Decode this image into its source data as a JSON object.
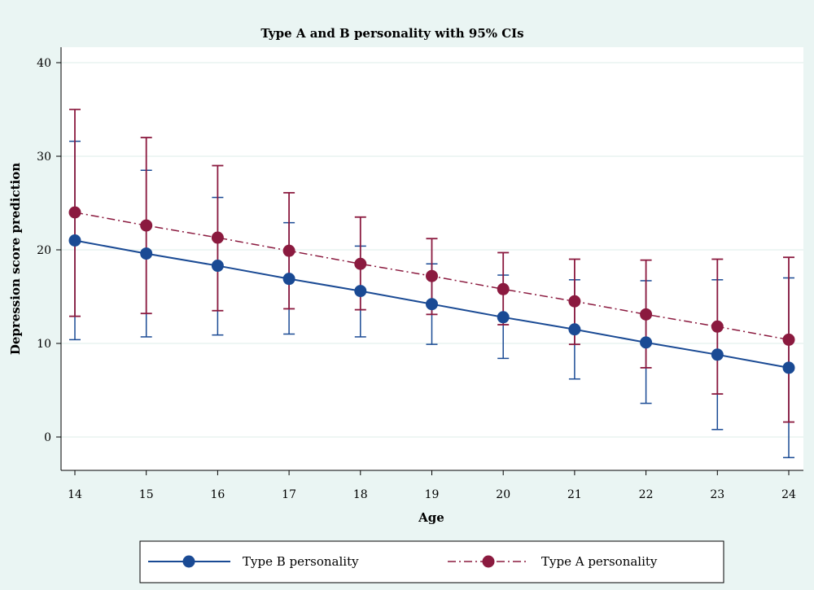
{
  "chart_data": {
    "type": "line",
    "title": "Type A and B personality with 95% CIs",
    "xlabel": "Age",
    "ylabel": "Depression score prediction",
    "x": [
      14,
      15,
      16,
      17,
      18,
      19,
      20,
      21,
      22,
      23,
      24
    ],
    "xlim": [
      14,
      24
    ],
    "ylim": [
      -3.5,
      40
    ],
    "yticks": [
      0,
      10,
      20,
      30,
      40
    ],
    "grid": true,
    "legend_position": "bottom",
    "series": [
      {
        "name": "Type B personality",
        "color": "#1a4a94",
        "line_style": "solid",
        "values": [
          21.0,
          19.6,
          18.3,
          16.9,
          15.6,
          14.2,
          12.8,
          11.5,
          10.1,
          8.8,
          7.4
        ],
        "ci_lower": [
          10.4,
          10.7,
          10.9,
          11.0,
          10.7,
          9.9,
          8.4,
          6.2,
          3.6,
          0.8,
          -2.2
        ],
        "ci_upper": [
          31.6,
          28.5,
          25.6,
          22.9,
          20.4,
          18.5,
          17.3,
          16.8,
          16.7,
          16.8,
          17.0
        ]
      },
      {
        "name": "Type A personality",
        "color": "#8b1a3f",
        "line_style": "dash-dot",
        "values": [
          24.0,
          22.6,
          21.3,
          19.9,
          18.5,
          17.2,
          15.8,
          14.5,
          13.1,
          11.8,
          10.4
        ],
        "ci_lower": [
          12.9,
          13.2,
          13.5,
          13.7,
          13.6,
          13.1,
          12.0,
          9.9,
          7.4,
          4.6,
          1.6
        ],
        "ci_upper": [
          35.0,
          32.0,
          29.0,
          26.1,
          23.5,
          21.2,
          19.7,
          19.0,
          18.9,
          19.0,
          19.2
        ]
      }
    ]
  }
}
